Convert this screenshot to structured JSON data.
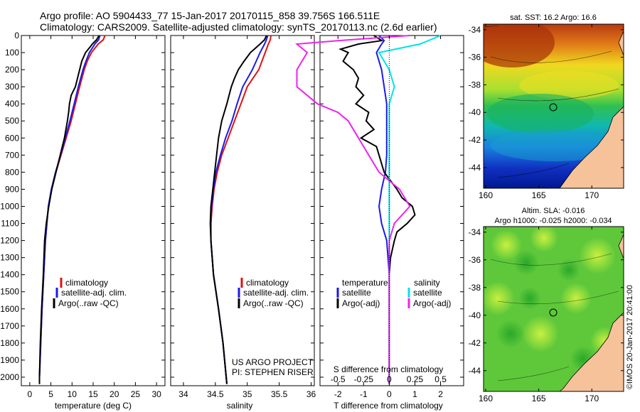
{
  "header": {
    "line1": "Argo profile: AO 5904433_77 15-Jan-2017 20170115_858 39.756S 166.511E",
    "line2": "Climatology: CARS2009. Satellite-adjusted climatology: synTS_20170113.nc (2.6d earlier)"
  },
  "depth_ticks": [
    "0",
    "100",
    "200",
    "300",
    "400",
    "500",
    "600",
    "700",
    "800",
    "900",
    "1000",
    "1100",
    "1200",
    "1300",
    "1400",
    "1500",
    "1600",
    "1700",
    "1800",
    "1900",
    "2000"
  ],
  "colors": {
    "climatology": "#dd1111",
    "satellite": "#1a1aee",
    "argo": "#000000",
    "sat_sal": "#00e5e5",
    "argo_sal": "#ee22ee"
  },
  "chart_data": [
    {
      "type": "line",
      "xlabel": "temperature (deg C)",
      "xticks": [
        "0",
        "5",
        "10",
        "15",
        "20",
        "25",
        "30"
      ],
      "xlim": [
        -2,
        32
      ],
      "ylim": [
        2050,
        0
      ],
      "legend": [
        "climatology",
        "satellite-adj. clim.",
        "Argo(..raw -QC)"
      ],
      "series": [
        {
          "name": "climatology",
          "color": "#dd1111",
          "depth": [
            0,
            25,
            50,
            100,
            150,
            200,
            300,
            400,
            500,
            600,
            700,
            800,
            900,
            1000,
            1200,
            1400,
            1600,
            1800,
            2000,
            2040
          ],
          "values": [
            17.8,
            17.4,
            16.2,
            14.6,
            13.6,
            12.9,
            11.8,
            10.8,
            9.8,
            8.6,
            7.4,
            6.2,
            5.2,
            4.4,
            3.7,
            3.3,
            2.9,
            2.6,
            2.3,
            2.3
          ]
        },
        {
          "name": "satellite-adj. clim.",
          "color": "#1a1aee",
          "depth": [
            0,
            25,
            50,
            100,
            150,
            200,
            300,
            400,
            500,
            600,
            700,
            800,
            900,
            1000,
            1200,
            1400,
            1600,
            1800,
            2000,
            2040
          ],
          "values": [
            16.6,
            16.3,
            15.4,
            14.1,
            13.3,
            12.6,
            11.5,
            10.5,
            9.5,
            8.4,
            7.3,
            6.1,
            5.1,
            4.4,
            3.7,
            3.3,
            2.9,
            2.6,
            2.3,
            2.3
          ]
        },
        {
          "name": "Argo(..raw -QC)",
          "color": "#000000",
          "depth": [
            0,
            25,
            50,
            70,
            100,
            150,
            200,
            300,
            350,
            400,
            450,
            500,
            600,
            700,
            800,
            900,
            1000,
            1100,
            1200,
            1400,
            1600,
            1800,
            2000,
            2040
          ],
          "values": [
            16.4,
            15.8,
            14.8,
            14.2,
            13.2,
            12.3,
            11.8,
            10.8,
            9.8,
            9.4,
            9.2,
            8.9,
            8.2,
            7.2,
            6.2,
            5.2,
            4.5,
            3.9,
            3.5,
            3.2,
            2.8,
            2.5,
            2.3,
            2.3
          ]
        }
      ]
    },
    {
      "type": "line",
      "xlabel": "salinity",
      "xticks": [
        "34",
        "34.5",
        "35",
        "35.5",
        "36"
      ],
      "xlim": [
        33.8,
        36.05
      ],
      "ylim": [
        2050,
        0
      ],
      "legend": [
        "climatology",
        "satellite-adj. clim.",
        "Argo(..raw -QC)"
      ],
      "annotation": [
        "US ARGO PROJECT",
        "PI: STEPHEN RISER"
      ],
      "series": [
        {
          "name": "climatology",
          "color": "#dd1111",
          "depth": [
            0,
            25,
            50,
            100,
            200,
            300,
            400,
            500,
            600,
            700,
            800,
            900,
            1000,
            1100,
            1200,
            1400,
            1600,
            1800,
            2000,
            2040
          ],
          "values": [
            35.37,
            35.36,
            35.33,
            35.28,
            35.18,
            35.0,
            34.9,
            34.8,
            34.7,
            34.6,
            34.53,
            34.48,
            34.45,
            34.43,
            34.43,
            34.47,
            34.55,
            34.62,
            34.67,
            34.68
          ]
        },
        {
          "name": "satellite-adj. clim.",
          "color": "#1a1aee",
          "depth": [
            0,
            25,
            50,
            100,
            200,
            300,
            400,
            500,
            600,
            700,
            800,
            900,
            1000,
            1100,
            1200,
            1400,
            1600,
            1800,
            2000,
            2040
          ],
          "values": [
            35.32,
            35.3,
            35.27,
            35.2,
            35.08,
            34.93,
            34.84,
            34.76,
            34.66,
            34.58,
            34.51,
            34.47,
            34.44,
            34.43,
            34.43,
            34.47,
            34.55,
            34.62,
            34.67,
            34.68
          ]
        },
        {
          "name": "Argo(..raw -QC)",
          "color": "#000000",
          "depth": [
            0,
            25,
            50,
            100,
            150,
            200,
            250,
            300,
            400,
            500,
            600,
            700,
            800,
            900,
            1000,
            1100,
            1200,
            1400,
            1600,
            1800,
            2000,
            2040
          ],
          "values": [
            35.3,
            35.27,
            35.2,
            35.05,
            34.95,
            34.86,
            34.8,
            34.75,
            34.68,
            34.6,
            34.55,
            34.52,
            34.49,
            34.46,
            34.43,
            34.42,
            34.43,
            34.47,
            34.55,
            34.62,
            34.67,
            34.68
          ]
        }
      ]
    },
    {
      "type": "line",
      "xlabel": "T difference from climatology",
      "xlabel_top": "S difference from climatology",
      "xticks_T": [
        "-2",
        "-1",
        "0",
        "1",
        "2"
      ],
      "xticks_S": [
        "-0.5",
        "-0.25",
        "0",
        "0.25",
        "0.5"
      ],
      "xlim": [
        -2.7,
        2.9
      ],
      "ylim": [
        2050,
        0
      ],
      "legend_T": [
        "temperature",
        "satellite",
        "Argo(-adj)"
      ],
      "legend_S": [
        "salinity",
        "satellite",
        "Argo(-adj)"
      ],
      "series": [
        {
          "name": "satellite",
          "color": "#1a1aee",
          "depth": [
            0,
            30,
            50,
            100,
            200,
            300,
            400,
            500,
            600,
            700,
            800,
            900,
            1000,
            1100,
            1200,
            1400,
            1600,
            1800,
            2040
          ],
          "values": [
            -0.4,
            -0.2,
            -0.3,
            -0.5,
            -0.3,
            -0.2,
            -0.1,
            -0.1,
            -0.1,
            -0.1,
            -0.15,
            -0.3,
            -0.4,
            -0.3,
            -0.1,
            0,
            0,
            0,
            0
          ]
        },
        {
          "name": "Argo(-adj)",
          "color": "#000000",
          "depth": [
            0,
            30,
            50,
            80,
            100,
            150,
            200,
            250,
            300,
            350,
            400,
            450,
            500,
            550,
            600,
            650,
            700,
            800,
            900,
            950,
            1000,
            1050,
            1100,
            1150,
            1200,
            1300,
            1400,
            1600,
            1800,
            2040
          ],
          "values": [
            -0.6,
            -0.3,
            -1.2,
            -1.9,
            -1.6,
            -1.8,
            -1.4,
            -1.2,
            -1.3,
            -1.0,
            -1.3,
            -0.8,
            -0.9,
            -0.6,
            -1.1,
            -0.5,
            -0.4,
            -0.2,
            0.3,
            0.5,
            0.9,
            1.0,
            0.7,
            0.3,
            0.2,
            0.05,
            0,
            0,
            0,
            0
          ]
        },
        {
          "name": "satellite (salinity)",
          "color": "#00e5e5",
          "depth": [
            0,
            50,
            100,
            200,
            300,
            400,
            500,
            600,
            700,
            800,
            900,
            1000,
            1200,
            1400,
            1600,
            1800,
            2040
          ],
          "values": [
            0.5,
            0.3,
            -0.1,
            0,
            0.05,
            0,
            0,
            0,
            0,
            0,
            0,
            0,
            0,
            0,
            0,
            0,
            0
          ]
        },
        {
          "name": "Argo(-adj) (salinity)",
          "color": "#ee22ee",
          "depth": [
            0,
            30,
            50,
            100,
            200,
            300,
            400,
            450,
            500,
            600,
            700,
            800,
            900,
            1000,
            1100,
            1200,
            1400,
            1600,
            1800,
            2040
          ],
          "values": [
            0.2,
            -0.5,
            -0.9,
            -0.8,
            -0.9,
            -0.9,
            -0.7,
            -0.5,
            -0.4,
            -0.3,
            -0.2,
            -0.1,
            0.1,
            0.2,
            0.05,
            0,
            0,
            0,
            0,
            0
          ]
        }
      ]
    }
  ],
  "maps": [
    {
      "title": "sat. SST: 16.2 Argo: 16.6",
      "lat_ticks": [
        "-34",
        "-36",
        "-38",
        "-40",
        "-42",
        "-44"
      ],
      "lon_ticks": [
        "160",
        "165",
        "170"
      ]
    },
    {
      "title1": "Altim. SLA: -0.016",
      "title2": "Argo h1000: -0.025 h2000: -0.034",
      "lat_ticks": [
        "-34",
        "-36",
        "-38",
        "-40",
        "-42",
        "-44"
      ],
      "lon_ticks": [
        "160",
        "165",
        "170"
      ]
    }
  ],
  "stamp": "©IMOS 20-Jan-2017 20:41:00"
}
